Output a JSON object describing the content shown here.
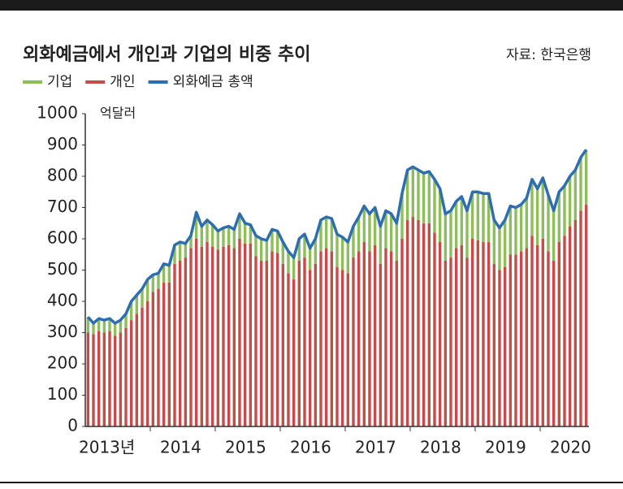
{
  "chart_data": {
    "type": "bar",
    "stacked": true,
    "title": "외화예금에서 개인과 기업의 비중 추이",
    "source": "자료: 한국은행",
    "y_unit": "억달러",
    "categories": [
      "2013년",
      null,
      null,
      null,
      null,
      null,
      null,
      null,
      null,
      null,
      null,
      null,
      "2014",
      null,
      null,
      null,
      null,
      null,
      null,
      null,
      null,
      null,
      null,
      null,
      "2015",
      null,
      null,
      null,
      null,
      null,
      null,
      null,
      null,
      null,
      null,
      null,
      "2016",
      null,
      null,
      null,
      null,
      null,
      null,
      null,
      null,
      null,
      null,
      null,
      "2017",
      null,
      null,
      null,
      null,
      null,
      null,
      null,
      null,
      null,
      null,
      null,
      "2018",
      null,
      null,
      null,
      null,
      null,
      null,
      null,
      null,
      null,
      null,
      null,
      "2019",
      null,
      null,
      null,
      null,
      null,
      null,
      null,
      null,
      null,
      null,
      null,
      "2020",
      null,
      null,
      null,
      null,
      null,
      null,
      null,
      null
    ],
    "series": [
      {
        "name": "기업",
        "color": "#8cbf5a",
        "values": [
          50,
          35,
          40,
          40,
          40,
          40,
          40,
          45,
          60,
          60,
          60,
          70,
          55,
          50,
          60,
          55,
          60,
          60,
          45,
          40,
          85,
          65,
          70,
          70,
          60,
          60,
          60,
          60,
          80,
          65,
          60,
          65,
          70,
          65,
          70,
          70,
          70,
          70,
          70,
          70,
          75,
          70,
          80,
          100,
          100,
          105,
          105,
          105,
          100,
          100,
          110,
          115,
          120,
          120,
          120,
          120,
          120,
          120,
          145,
          160,
          160,
          160,
          160,
          165,
          170,
          170,
          150,
          150,
          150,
          155,
          150,
          150,
          155,
          155,
          155,
          140,
          135,
          150,
          155,
          150,
          150,
          160,
          180,
          180,
          195,
          180,
          160,
          160,
          160,
          160,
          160,
          170,
          175
        ]
      },
      {
        "name": "개인",
        "color": "#c84a4a",
        "values": [
          300,
          295,
          305,
          300,
          305,
          290,
          300,
          315,
          340,
          360,
          380,
          400,
          430,
          440,
          460,
          460,
          520,
          530,
          540,
          570,
          600,
          575,
          590,
          575,
          565,
          575,
          580,
          570,
          600,
          585,
          585,
          545,
          530,
          530,
          560,
          555,
          520,
          490,
          470,
          530,
          540,
          500,
          520,
          560,
          570,
          560,
          510,
          500,
          490,
          540,
          560,
          590,
          560,
          580,
          520,
          570,
          560,
          530,
          600,
          660,
          670,
          660,
          650,
          650,
          620,
          590,
          530,
          540,
          570,
          580,
          540,
          600,
          595,
          590,
          590,
          520,
          500,
          510,
          550,
          550,
          560,
          570,
          610,
          580,
          600,
          560,
          530,
          590,
          610,
          640,
          660,
          690,
          710
        ]
      },
      {
        "name": "외화예금 총액",
        "type": "line",
        "color": "#2e6db0",
        "values": [
          350,
          330,
          345,
          340,
          345,
          330,
          340,
          360,
          400,
          420,
          440,
          470,
          485,
          490,
          520,
          515,
          580,
          590,
          585,
          610,
          685,
          640,
          660,
          645,
          625,
          635,
          640,
          630,
          680,
          650,
          645,
          610,
          600,
          595,
          630,
          625,
          590,
          560,
          540,
          600,
          615,
          570,
          600,
          660,
          670,
          665,
          615,
          605,
          590,
          640,
          670,
          705,
          680,
          700,
          640,
          690,
          680,
          650,
          745,
          820,
          830,
          820,
          810,
          815,
          790,
          760,
          680,
          690,
          720,
          735,
          690,
          750,
          750,
          745,
          745,
          660,
          635,
          660,
          705,
          700,
          710,
          730,
          790,
          760,
          795,
          740,
          690,
          750,
          770,
          800,
          820,
          860,
          885
        ]
      }
    ],
    "ylim": [
      0,
      1000
    ],
    "yticks": [
      0,
      100,
      200,
      300,
      400,
      500,
      600,
      700,
      800,
      900,
      1000
    ]
  }
}
